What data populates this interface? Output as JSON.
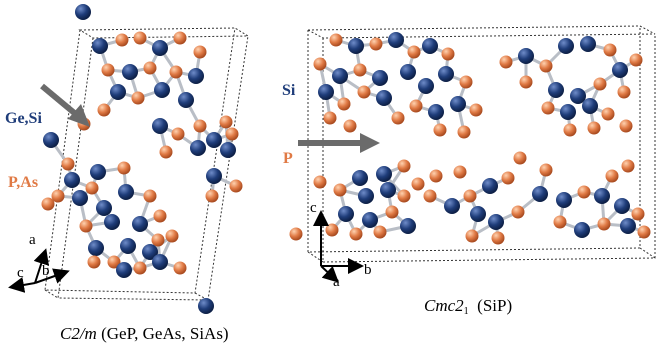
{
  "colors": {
    "group14": "#1f3d7a",
    "group15": "#e07a45",
    "bond": "#b9bec6",
    "box": "#333333",
    "arrow": "#6b6b6b"
  },
  "left_panel": {
    "label_group14": "Ge,Si",
    "label_group15": "P,As",
    "axes": {
      "a": "a",
      "b": "b",
      "c": "c"
    },
    "caption_sg": "C2/m",
    "caption_compounds": "(GeP, GeAs, SiAs)"
  },
  "right_panel": {
    "label_group14": "Si",
    "label_group15": "P",
    "axes": {
      "a": "a",
      "b": "b",
      "c": "c"
    },
    "caption_sg_main": "Cmc2",
    "caption_sg_sub": "1",
    "caption_compounds": "(SiP)"
  }
}
